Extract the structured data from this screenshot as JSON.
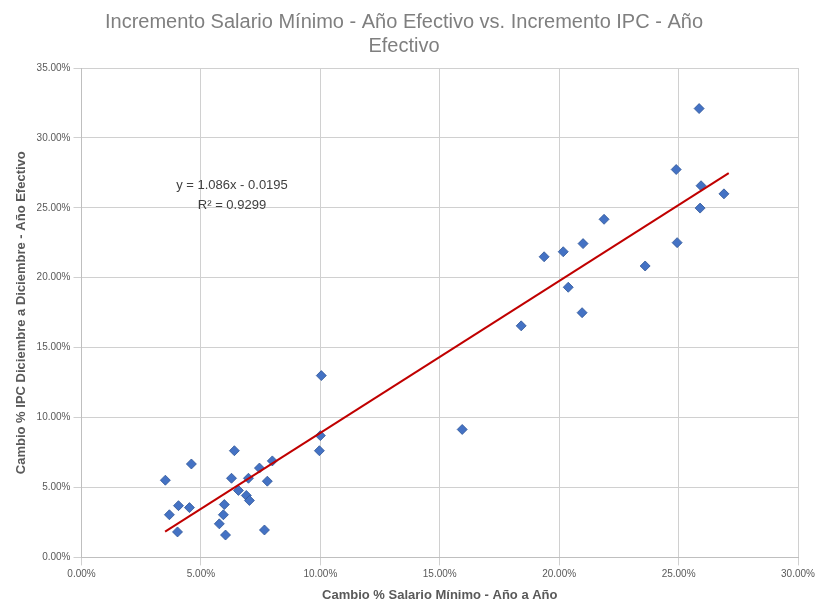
{
  "chart_data": {
    "type": "scatter",
    "title": "Incremento Salario Mínimo - Año Efectivo vs. Incremento IPC - Año Efectivo",
    "x_label": "Cambio % Salario Mínimo - Año a Año",
    "y_label": "Cambio % IPC Diciembre a Diciembre - Año Efectivo",
    "annotations": [
      "y = 1.086x - 0.0195",
      "R² = 0.9299"
    ],
    "xlim": [
      0,
      0.3
    ],
    "xticks": [
      {
        "value": 0,
        "label": "0.00%"
      },
      {
        "value": 0.05,
        "label": "5.00%"
      },
      {
        "value": 0.1,
        "label": "10.00%"
      },
      {
        "value": 0.15,
        "label": "15.00%"
      },
      {
        "value": 0.2,
        "label": "20.00%"
      },
      {
        "value": 0.25,
        "label": "25.00%"
      },
      {
        "value": 0.3,
        "label": "30.00%"
      }
    ],
    "ylim": [
      0,
      0.35
    ],
    "yticks": [
      {
        "value": 0,
        "label": "0.00%"
      },
      {
        "value": 0.05,
        "label": "5.00%"
      },
      {
        "value": 0.1,
        "label": "10.00%"
      },
      {
        "value": 0.15,
        "label": "15.00%"
      },
      {
        "value": 0.2,
        "label": "20.00%"
      },
      {
        "value": 0.25,
        "label": "25.00%"
      },
      {
        "value": 0.3,
        "label": "30.00%"
      },
      {
        "value": 0.35,
        "label": "35.00%"
      }
    ],
    "grid": true,
    "series": [
      {
        "type": "scatter",
        "marker": "diamond",
        "color": "#4472c4",
        "x": [
          0.0351,
          0.0368,
          0.0406,
          0.0402,
          0.0452,
          0.046,
          0.0577,
          0.0594,
          0.0598,
          0.0603,
          0.0628,
          0.064,
          0.0657,
          0.069,
          0.0699,
          0.0703,
          0.0745,
          0.0766,
          0.0778,
          0.0799,
          0.0996,
          0.1,
          0.1004,
          0.1594,
          0.1841,
          0.1937,
          0.2017,
          0.2038,
          0.21,
          0.2096,
          0.2188,
          0.236,
          0.249,
          0.2494,
          0.2586,
          0.2594,
          0.259,
          0.269
        ],
        "values": [
          0.0552,
          0.0305,
          0.037,
          0.0182,
          0.0356,
          0.0668,
          0.024,
          0.0305,
          0.0378,
          0.016,
          0.0566,
          0.0763,
          0.0479,
          0.0443,
          0.0566,
          0.0407,
          0.0639,
          0.0196,
          0.0545,
          0.069,
          0.0763,
          0.0871,
          0.13,
          0.0915,
          0.1656,
          0.215,
          0.2186,
          0.1932,
          0.2244,
          0.175,
          0.2418,
          0.2084,
          0.2774,
          0.2251,
          0.321,
          0.2658,
          0.2498,
          0.26
        ]
      },
      {
        "type": "line",
        "line_style": "solid",
        "color": "#c00000",
        "x": [
          0.035,
          0.271
        ],
        "values": [
          0.0185,
          0.2748
        ]
      }
    ]
  }
}
